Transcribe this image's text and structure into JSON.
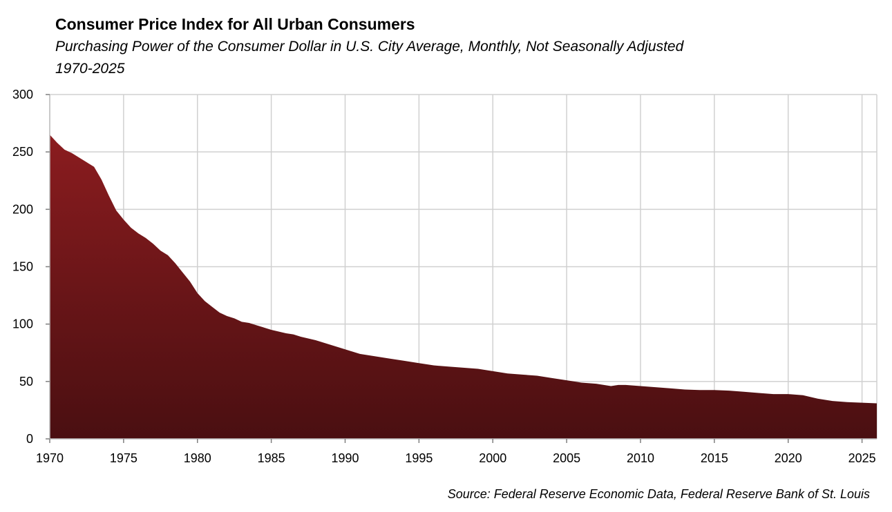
{
  "header": {
    "title": "Consumer Price Index for All Urban Consumers",
    "subtitle": "Purchasing Power of the Consumer Dollar in U.S. City Average, Monthly, Not Seasonally Adjusted",
    "period": "1970-2025"
  },
  "footer": {
    "source": "Source: Federal Reserve Economic Data, Federal Reserve Bank of St. Louis"
  },
  "colors": {
    "area_top": "#8b1c1f",
    "area_bottom": "#4a0f11",
    "grid": "#d0d0d0",
    "axis": "#bfbfbf"
  },
  "chart_data": {
    "type": "area",
    "title": "Consumer Price Index for All Urban Consumers",
    "subtitle": "Purchasing Power of the Consumer Dollar in U.S. City Average, Monthly, Not Seasonally Adjusted",
    "xlabel": "",
    "ylabel": "",
    "xlim": [
      1970,
      2026
    ],
    "ylim": [
      0,
      300
    ],
    "grid": true,
    "legend": "none",
    "x_ticks": [
      1970,
      1975,
      1980,
      1985,
      1990,
      1995,
      2000,
      2005,
      2010,
      2015,
      2020,
      2025
    ],
    "y_ticks": [
      0,
      50,
      100,
      150,
      200,
      250,
      300
    ],
    "series": [
      {
        "x": [
          1970.0,
          1970.5,
          1971.0,
          1971.5,
          1972.0,
          1972.5,
          1973.0,
          1973.5,
          1974.0,
          1974.5,
          1975.0,
          1975.5,
          1976.0,
          1976.5,
          1977.0,
          1977.5,
          1978.0,
          1978.5,
          1979.0,
          1979.5,
          1980.0,
          1980.5,
          1981.0,
          1981.5,
          1982.0,
          1982.5,
          1983.0,
          1983.5,
          1984.0,
          1985.0,
          1986.0,
          1986.5,
          1987.0,
          1988.0,
          1989.0,
          1990.0,
          1991.0,
          1992.0,
          1993.0,
          1994.0,
          1995.0,
          1996.0,
          1997.0,
          1998.0,
          1999.0,
          2000.0,
          2001.0,
          2002.0,
          2003.0,
          2004.0,
          2005.0,
          2006.0,
          2007.0,
          2008.0,
          2008.5,
          2009.0,
          2010.0,
          2011.0,
          2012.0,
          2013.0,
          2014.0,
          2015.0,
          2016.0,
          2017.0,
          2018.0,
          2019.0,
          2020.0,
          2021.0,
          2022.0,
          2023.0,
          2024.0,
          2025.0,
          2026.0
        ],
        "values": [
          265,
          258,
          252,
          249,
          245,
          241,
          237,
          226,
          212,
          199,
          191,
          184,
          179,
          175,
          170,
          164,
          160,
          153,
          145,
          137,
          127,
          120,
          115,
          110,
          107,
          105,
          102,
          101,
          99,
          95,
          92,
          91,
          89,
          86,
          82,
          78,
          74,
          72,
          70,
          68,
          66,
          64,
          63,
          62,
          61,
          59,
          57,
          56,
          55,
          53,
          51,
          49,
          48,
          46,
          47,
          47,
          46,
          45,
          44,
          43,
          42.5,
          42.5,
          42,
          41,
          40,
          39,
          39,
          38,
          35,
          33,
          32,
          31.5,
          31
        ]
      }
    ]
  }
}
